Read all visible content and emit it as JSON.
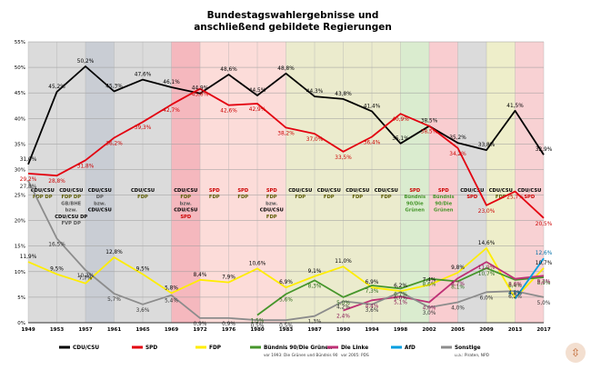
{
  "chart_data": {
    "type": "line",
    "title": [
      "Bundestagswahlergebnisse und",
      "anschließend gebildete Regierungen"
    ],
    "x": [
      "1949",
      "1953",
      "1957",
      "1961",
      "1965",
      "1969",
      "1972",
      "1976",
      "1980",
      "1983",
      "1987",
      "1990",
      "1994",
      "1998",
      "2002",
      "2005",
      "2009",
      "2013",
      "2017"
    ],
    "ylim": [
      0,
      55
    ],
    "yticks": [
      "0%",
      "5%",
      "10%",
      "15%",
      "20%",
      "25%",
      "30%",
      "35%",
      "40%",
      "45%",
      "50%",
      "55%"
    ],
    "grid": true,
    "legend_position": "bottom",
    "series": [
      {
        "name": "CDU/CSU",
        "color": "#000000",
        "sub": "",
        "values": [
          31.0,
          45.2,
          50.2,
          45.3,
          47.6,
          46.1,
          44.9,
          48.6,
          44.5,
          48.8,
          44.3,
          43.8,
          41.4,
          35.1,
          38.5,
          35.2,
          33.8,
          41.5,
          32.9
        ]
      },
      {
        "name": "SPD",
        "color": "#e3000f",
        "sub": "",
        "values": [
          29.2,
          28.8,
          31.8,
          36.2,
          39.3,
          42.7,
          45.8,
          42.6,
          42.9,
          38.2,
          37.0,
          33.5,
          36.4,
          40.9,
          38.5,
          34.2,
          23.0,
          25.7,
          20.5
        ]
      },
      {
        "name": "FDP",
        "color": "#ffed00",
        "sub": "",
        "values": [
          11.9,
          9.5,
          7.7,
          12.8,
          9.5,
          5.8,
          8.4,
          7.9,
          10.6,
          6.9,
          9.1,
          11.0,
          6.9,
          6.2,
          7.4,
          9.8,
          14.6,
          4.8,
          10.7
        ]
      },
      {
        "name": "Bündnis 90/Die Grünen",
        "color": "#46962b",
        "sub": "vor 1993: Die Grünen und Bündnis 90",
        "values": [
          null,
          null,
          null,
          null,
          null,
          null,
          null,
          null,
          1.5,
          5.6,
          8.3,
          5.0,
          7.3,
          6.7,
          8.6,
          8.1,
          10.7,
          8.4,
          8.9
        ]
      },
      {
        "name": "Die Linke",
        "color": "#be3075",
        "sub": "vor 2005: PDS",
        "values": [
          null,
          null,
          null,
          null,
          null,
          null,
          null,
          null,
          null,
          null,
          null,
          2.4,
          4.4,
          5.1,
          4.0,
          8.7,
          11.9,
          8.6,
          9.2
        ]
      },
      {
        "name": "AfD",
        "color": "#009ee0",
        "sub": "",
        "values": [
          null,
          null,
          null,
          null,
          null,
          null,
          null,
          null,
          null,
          null,
          null,
          null,
          null,
          null,
          null,
          null,
          null,
          4.7,
          12.6
        ]
      },
      {
        "name": "Sonstige",
        "color": "#8c8c8c",
        "sub": "u.a.: Piraten, NPD",
        "values": [
          27.8,
          16.5,
          10.3,
          5.7,
          3.6,
          5.4,
          0.9,
          0.9,
          0.5,
          0.5,
          1.3,
          4.2,
          3.6,
          6.0,
          3.0,
          4.0,
          6.0,
          6.2,
          5.0
        ]
      }
    ],
    "labels": [
      {
        "i": 0,
        "s": 0,
        "t": "31,0%"
      },
      {
        "i": 1,
        "s": 0,
        "t": "45,2%"
      },
      {
        "i": 2,
        "s": 0,
        "t": "50,2%"
      },
      {
        "i": 3,
        "s": 0,
        "t": "45,3%"
      },
      {
        "i": 4,
        "s": 0,
        "t": "47,6%"
      },
      {
        "i": 5,
        "s": 0,
        "t": "46,1%"
      },
      {
        "i": 6,
        "s": 0,
        "t": "44,9%"
      },
      {
        "i": 7,
        "s": 0,
        "t": "48,6%"
      },
      {
        "i": 8,
        "s": 0,
        "t": "44,5%"
      },
      {
        "i": 9,
        "s": 0,
        "t": "48,8%"
      },
      {
        "i": 10,
        "s": 0,
        "t": "44,3%"
      },
      {
        "i": 11,
        "s": 0,
        "t": "43,8%"
      },
      {
        "i": 12,
        "s": 0,
        "t": "41,4%"
      },
      {
        "i": 13,
        "s": 0,
        "t": "35,1%"
      },
      {
        "i": 14,
        "s": 0,
        "t": "38,5%"
      },
      {
        "i": 15,
        "s": 0,
        "t": "35,2%"
      },
      {
        "i": 16,
        "s": 0,
        "t": "33,8%"
      },
      {
        "i": 17,
        "s": 0,
        "t": "41,5%"
      },
      {
        "i": 18,
        "s": 0,
        "t": "32,9%"
      },
      {
        "i": 0,
        "s": 1,
        "t": "29,2%"
      },
      {
        "i": 1,
        "s": 1,
        "t": "28,8%"
      },
      {
        "i": 2,
        "s": 1,
        "t": "31,8%"
      },
      {
        "i": 3,
        "s": 1,
        "t": "36,2%"
      },
      {
        "i": 4,
        "s": 1,
        "t": "39,3%"
      },
      {
        "i": 5,
        "s": 1,
        "t": "42,7%"
      },
      {
        "i": 6,
        "s": 1,
        "t": "45,8%"
      },
      {
        "i": 7,
        "s": 1,
        "t": "42,6%"
      },
      {
        "i": 8,
        "s": 1,
        "t": "42,9%"
      },
      {
        "i": 9,
        "s": 1,
        "t": "38,2%"
      },
      {
        "i": 10,
        "s": 1,
        "t": "37,0%"
      },
      {
        "i": 11,
        "s": 1,
        "t": "33,5%"
      },
      {
        "i": 12,
        "s": 1,
        "t": "36,4%"
      },
      {
        "i": 13,
        "s": 1,
        "t": "40,9%"
      },
      {
        "i": 14,
        "s": 1,
        "t": "38,5%"
      },
      {
        "i": 15,
        "s": 1,
        "t": "34,2%"
      },
      {
        "i": 16,
        "s": 1,
        "t": "23,0%"
      },
      {
        "i": 17,
        "s": 1,
        "t": "25,7%"
      },
      {
        "i": 18,
        "s": 1,
        "t": "20,5%"
      },
      {
        "i": 0,
        "s": 2,
        "t": "11,9%"
      },
      {
        "i": 1,
        "s": 2,
        "t": "9,5%"
      },
      {
        "i": 2,
        "s": 2,
        "t": "7,7%"
      },
      {
        "i": 3,
        "s": 2,
        "t": "12,8%"
      },
      {
        "i": 4,
        "s": 2,
        "t": "9,5%"
      },
      {
        "i": 5,
        "s": 2,
        "t": "5,8%"
      },
      {
        "i": 6,
        "s": 2,
        "t": "8,4%"
      },
      {
        "i": 7,
        "s": 2,
        "t": "7,9%"
      },
      {
        "i": 8,
        "s": 2,
        "t": "10,6%"
      },
      {
        "i": 9,
        "s": 2,
        "t": "6,9%"
      },
      {
        "i": 10,
        "s": 2,
        "t": "9,1%"
      },
      {
        "i": 11,
        "s": 2,
        "t": "11,0%"
      },
      {
        "i": 12,
        "s": 2,
        "t": "6,9%"
      },
      {
        "i": 13,
        "s": 2,
        "t": "6,2%"
      },
      {
        "i": 14,
        "s": 2,
        "t": "7,4%"
      },
      {
        "i": 15,
        "s": 2,
        "t": "9,8%"
      },
      {
        "i": 16,
        "s": 2,
        "t": "14,6%"
      },
      {
        "i": 17,
        "s": 2,
        "t": "4,8%"
      },
      {
        "i": 18,
        "s": 2,
        "t": "10,7%"
      },
      {
        "i": 8,
        "s": 3,
        "t": "1,5%"
      },
      {
        "i": 9,
        "s": 3,
        "t": "5,6%"
      },
      {
        "i": 10,
        "s": 3,
        "t": "8,3%"
      },
      {
        "i": 11,
        "s": 3,
        "t": "5,0%"
      },
      {
        "i": 12,
        "s": 3,
        "t": "7,3%"
      },
      {
        "i": 13,
        "s": 3,
        "t": "6,7%"
      },
      {
        "i": 14,
        "s": 3,
        "t": "8,6%"
      },
      {
        "i": 15,
        "s": 3,
        "t": "8,1%"
      },
      {
        "i": 16,
        "s": 3,
        "t": "10,7%"
      },
      {
        "i": 17,
        "s": 3,
        "t": "8,4%"
      },
      {
        "i": 18,
        "s": 3,
        "t": "8,9%"
      },
      {
        "i": 11,
        "s": 4,
        "t": "2,4%"
      },
      {
        "i": 12,
        "s": 4,
        "t": "4,4%"
      },
      {
        "i": 13,
        "s": 4,
        "t": "5,1%"
      },
      {
        "i": 14,
        "s": 4,
        "t": "4,0%"
      },
      {
        "i": 15,
        "s": 4,
        "t": "8,7%"
      },
      {
        "i": 16,
        "s": 4,
        "t": "11,9%"
      },
      {
        "i": 17,
        "s": 4,
        "t": "8,6%"
      },
      {
        "i": 18,
        "s": 4,
        "t": "9,2%"
      },
      {
        "i": 17,
        "s": 5,
        "t": "4,7%"
      },
      {
        "i": 18,
        "s": 5,
        "t": "12,6%"
      },
      {
        "i": 0,
        "s": 6,
        "t": "27,8%"
      },
      {
        "i": 1,
        "s": 6,
        "t": "16,5%"
      },
      {
        "i": 2,
        "s": 6,
        "t": "10,3%"
      },
      {
        "i": 3,
        "s": 6,
        "t": "5,7%"
      },
      {
        "i": 4,
        "s": 6,
        "t": "3,6%"
      },
      {
        "i": 5,
        "s": 6,
        "t": "5,4%"
      },
      {
        "i": 6,
        "s": 6,
        "t": "0,9%"
      },
      {
        "i": 7,
        "s": 6,
        "t": "0,9%"
      },
      {
        "i": 8,
        "s": 6,
        "t": "0,5%"
      },
      {
        "i": 9,
        "s": 6,
        "t": "0,5%"
      },
      {
        "i": 10,
        "s": 6,
        "t": "1,3%"
      },
      {
        "i": 11,
        "s": 6,
        "t": "4,2%"
      },
      {
        "i": 12,
        "s": 6,
        "t": "3,6%"
      },
      {
        "i": 13,
        "s": 6,
        "t": "6,0%"
      },
      {
        "i": 14,
        "s": 6,
        "t": "3,0%"
      },
      {
        "i": 15,
        "s": 6,
        "t": "4,0%"
      },
      {
        "i": 16,
        "s": 6,
        "t": "6,0%"
      },
      {
        "i": 17,
        "s": 6,
        "t": "6,2%"
      },
      {
        "i": 18,
        "s": 6,
        "t": "5,0%"
      }
    ],
    "governments": [
      {
        "from": 0,
        "to": 1,
        "color": "#cfcfcf",
        "lines": [
          {
            "t": "CDU/CSU",
            "c": "#000"
          },
          {
            "t": "FDP DP",
            "c": "#5a5a00"
          }
        ]
      },
      {
        "from": 1,
        "to": 2,
        "color": "#cfcfcf",
        "lines": [
          {
            "t": "CDU/CSU",
            "c": "#000"
          },
          {
            "t": "FDP DP",
            "c": "#5a5a00"
          },
          {
            "t": "GB/BHE",
            "c": "#555"
          },
          {
            "t": "bzw.",
            "c": "#555"
          },
          {
            "t": "CDU/CSU DP",
            "c": "#000"
          },
          {
            "t": "FVP DP",
            "c": "#555"
          }
        ]
      },
      {
        "from": 2,
        "to": 3,
        "color": "#b7bcc6",
        "lines": [
          {
            "t": "CDU/CSU",
            "c": "#000"
          },
          {
            "t": "DP",
            "c": "#555"
          },
          {
            "t": "bzw.",
            "c": "#555"
          },
          {
            "t": "CDU/CSU",
            "c": "#000"
          }
        ]
      },
      {
        "from": 3,
        "to": 5,
        "color": "#cfcfcf",
        "lines": [
          {
            "t": "CDU/CSU",
            "c": "#000"
          },
          {
            "t": "FDP",
            "c": "#5a5a00"
          }
        ]
      },
      {
        "from": 5,
        "to": 6,
        "color": "#f2a0a8",
        "lines": [
          {
            "t": "CDU/CSU",
            "c": "#000"
          },
          {
            "t": "FDP",
            "c": "#5a5a00"
          },
          {
            "t": "bzw.",
            "c": "#555"
          },
          {
            "t": "CDU/CSU",
            "c": "#000"
          },
          {
            "t": "SPD",
            "c": "#c00"
          }
        ]
      },
      {
        "from": 6,
        "to": 7,
        "color": "#fbd0cc",
        "lines": [
          {
            "t": "SPD",
            "c": "#c00"
          },
          {
            "t": "FDP",
            "c": "#5a5a00"
          }
        ]
      },
      {
        "from": 7,
        "to": 8,
        "color": "#fbd0cc",
        "lines": [
          {
            "t": "SPD",
            "c": "#c00"
          },
          {
            "t": "FDP",
            "c": "#5a5a00"
          }
        ]
      },
      {
        "from": 8,
        "to": 9,
        "color": "#fbd0cc",
        "lines": [
          {
            "t": "SPD",
            "c": "#c00"
          },
          {
            "t": "FDP",
            "c": "#5a5a00"
          },
          {
            "t": "bzw.",
            "c": "#555"
          },
          {
            "t": "CDU/CSU",
            "c": "#000"
          },
          {
            "t": "FDP",
            "c": "#5a5a00"
          }
        ]
      },
      {
        "from": 9,
        "to": 10,
        "color": "#e4e4bc",
        "lines": [
          {
            "t": "CDU/CSU",
            "c": "#000"
          },
          {
            "t": "FDP",
            "c": "#5a5a00"
          }
        ]
      },
      {
        "from": 10,
        "to": 11,
        "color": "#e4e4bc",
        "lines": [
          {
            "t": "CDU/CSU",
            "c": "#000"
          },
          {
            "t": "FDP",
            "c": "#5a5a00"
          }
        ]
      },
      {
        "from": 11,
        "to": 12,
        "color": "#e4e4bc",
        "lines": [
          {
            "t": "CDU/CSU",
            "c": "#000"
          },
          {
            "t": "FDP",
            "c": "#5a5a00"
          }
        ]
      },
      {
        "from": 12,
        "to": 13,
        "color": "#e4e4bc",
        "lines": [
          {
            "t": "CDU/CSU",
            "c": "#000"
          },
          {
            "t": "FDP",
            "c": "#5a5a00"
          }
        ]
      },
      {
        "from": 13,
        "to": 14,
        "color": "#cde6bf",
        "lines": [
          {
            "t": "SPD",
            "c": "#c00"
          },
          {
            "t": "Bündnis",
            "c": "#46962b"
          },
          {
            "t": "90/Die",
            "c": "#46962b"
          },
          {
            "t": "Grünen",
            "c": "#46962b"
          }
        ]
      },
      {
        "from": 14,
        "to": 15,
        "color": "#f7bcc0",
        "lines": [
          {
            "t": "SPD",
            "c": "#c00"
          },
          {
            "t": "Bündnis",
            "c": "#46962b"
          },
          {
            "t": "90/Die",
            "c": "#46962b"
          },
          {
            "t": "Grünen",
            "c": "#46962b"
          }
        ]
      },
      {
        "from": 15,
        "to": 16,
        "color": "#cfcfcf",
        "lines": [
          {
            "t": "CDU/CSU",
            "c": "#000"
          },
          {
            "t": "SPD",
            "c": "#c00"
          }
        ]
      },
      {
        "from": 16,
        "to": 17,
        "color": "#e8e8b8",
        "lines": [
          {
            "t": "CDU/CSU",
            "c": "#000"
          },
          {
            "t": "FDP",
            "c": "#5a5a00"
          }
        ]
      },
      {
        "from": 17,
        "to": 18,
        "color": "#f5c2c4",
        "lines": [
          {
            "t": "CDU/CSU",
            "c": "#000"
          },
          {
            "t": "SPD",
            "c": "#c00"
          }
        ]
      }
    ]
  },
  "logo": {
    "glyph": "⇳"
  }
}
